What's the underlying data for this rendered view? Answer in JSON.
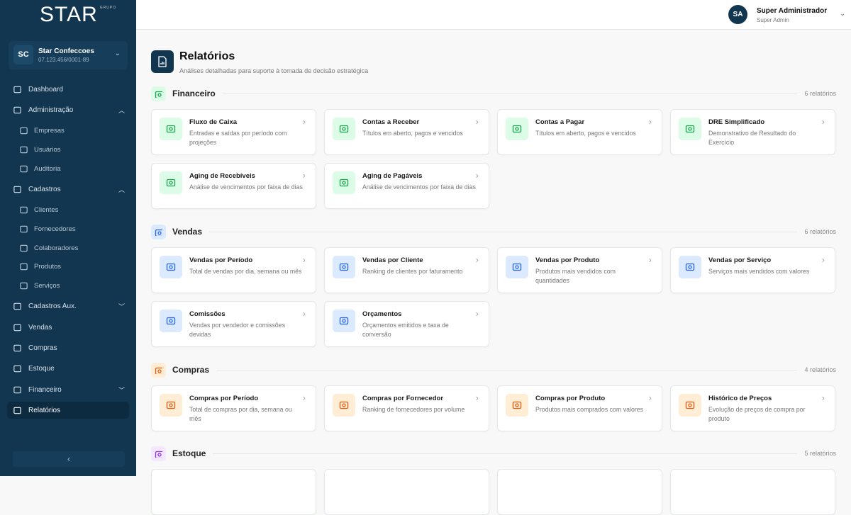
{
  "sidebar": {
    "logo": "STAR",
    "logo_small": "GRUPO",
    "company": {
      "initials": "SC",
      "name": "Star Confeccoes",
      "cnpj": "07.123.456/0001-89"
    },
    "items": [
      {
        "label": "Dashboard",
        "icon": "home-icon",
        "type": "top"
      },
      {
        "label": "Administração",
        "icon": "building-icon",
        "type": "top",
        "arrow": "up"
      },
      {
        "label": "Empresas",
        "icon": "building-icon",
        "type": "sub"
      },
      {
        "label": "Usuários",
        "icon": "user-icon",
        "type": "sub"
      },
      {
        "label": "Auditoria",
        "icon": "clipboard-icon",
        "type": "sub"
      },
      {
        "label": "Cadastros",
        "icon": "users-icon",
        "type": "top",
        "arrow": "up"
      },
      {
        "label": "Clientes",
        "icon": "users-icon",
        "type": "sub"
      },
      {
        "label": "Fornecedores",
        "icon": "truck-icon",
        "type": "sub"
      },
      {
        "label": "Colaboradores",
        "icon": "id-card-icon",
        "type": "sub"
      },
      {
        "label": "Produtos",
        "icon": "box-icon",
        "type": "sub"
      },
      {
        "label": "Serviços",
        "icon": "tools-icon",
        "type": "sub"
      },
      {
        "label": "Cadastros Aux.",
        "icon": "folder-icon",
        "type": "top",
        "arrow": "down"
      },
      {
        "label": "Vendas",
        "icon": "cart-icon",
        "type": "top"
      },
      {
        "label": "Compras",
        "icon": "bag-icon",
        "type": "top"
      },
      {
        "label": "Estoque",
        "icon": "archive-icon",
        "type": "top"
      },
      {
        "label": "Financeiro",
        "icon": "wallet-icon",
        "type": "top",
        "arrow": "down"
      },
      {
        "label": "Relatórios",
        "icon": "file-report-icon",
        "type": "top",
        "active": true
      }
    ],
    "collapse": "‹"
  },
  "header": {
    "user_initials": "SA",
    "user_name": "Super Administrador",
    "user_role": "Super Admin"
  },
  "page": {
    "title": "Relatórios",
    "subtitle": "Análises detalhadas para suporte à tomada de decisão estratégica"
  },
  "sections": [
    {
      "title": "Financeiro",
      "count": "6 relatórios",
      "bg": "#dcfce7",
      "fg": "#16a34a",
      "icon": "money-icon",
      "cards": [
        {
          "title": "Fluxo de Caixa",
          "desc": "Entradas e saídas por período com projeções",
          "icon": "money-icon"
        },
        {
          "title": "Contas a Receber",
          "desc": "Títulos em aberto, pagos e vencidos",
          "icon": "trending-up-icon"
        },
        {
          "title": "Contas a Pagar",
          "desc": "Títulos em aberto, pagos e vencidos",
          "icon": "trending-down-icon"
        },
        {
          "title": "DRE Simplificado",
          "desc": "Demonstrativo de Resultado do Exercício",
          "icon": "file-chart-icon"
        },
        {
          "title": "Aging de Recebíveis",
          "desc": "Análise de vencimentos por faixa de dias",
          "icon": "clock-icon"
        },
        {
          "title": "Aging de Pagáveis",
          "desc": "Análise de vencimentos por faixa de dias",
          "icon": "clock-icon"
        }
      ]
    },
    {
      "title": "Vendas",
      "count": "6 relatórios",
      "bg": "#dbeafe",
      "fg": "#2563eb",
      "icon": "cart-icon",
      "cards": [
        {
          "title": "Vendas por Período",
          "desc": "Total de vendas por dia, semana ou mês",
          "icon": "cart-icon"
        },
        {
          "title": "Vendas por Cliente",
          "desc": "Ranking de clientes por faturamento",
          "icon": "users-icon"
        },
        {
          "title": "Vendas por Produto",
          "desc": "Produtos mais vendidos com quantidades",
          "icon": "box-icon"
        },
        {
          "title": "Vendas por Serviço",
          "desc": "Serviços mais vendidos com valores",
          "icon": "tools-icon"
        },
        {
          "title": "Comissões",
          "desc": "Vendas por vendedor e comissões devidas",
          "icon": "dollar-icon"
        },
        {
          "title": "Orçamentos",
          "desc": "Orçamentos emitidos e taxa de conversão",
          "icon": "file-icon"
        }
      ]
    },
    {
      "title": "Compras",
      "count": "4 relatórios",
      "bg": "#ffedd5",
      "fg": "#ea580c",
      "icon": "truck-icon",
      "cards": [
        {
          "title": "Compras por Período",
          "desc": "Total de compras por dia, semana ou mês",
          "icon": "truck-icon"
        },
        {
          "title": "Compras por Fornecedor",
          "desc": "Ranking de fornecedores por volume",
          "icon": "building-icon"
        },
        {
          "title": "Compras por Produto",
          "desc": "Produtos mais comprados com valores",
          "icon": "box-icon"
        },
        {
          "title": "Histórico de Preços",
          "desc": "Evolução de preços de compra por produto",
          "icon": "bar-chart-icon"
        }
      ]
    },
    {
      "title": "Estoque",
      "count": "5 relatórios",
      "bg": "#f3e8ff",
      "fg": "#9333ea",
      "icon": "archive-icon",
      "cards": [
        {},
        {},
        {},
        {}
      ]
    }
  ]
}
